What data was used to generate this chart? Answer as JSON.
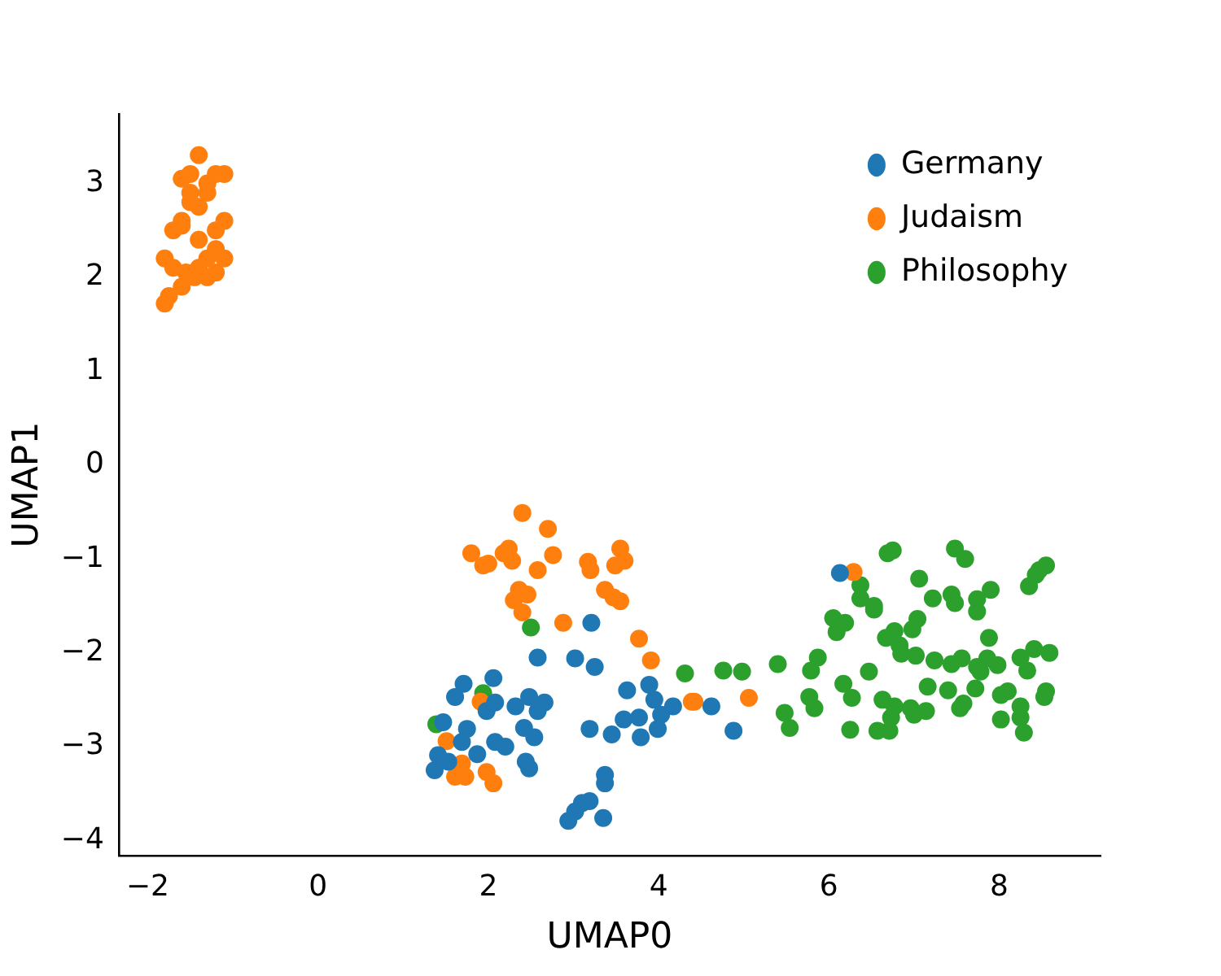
{
  "chart_data": {
    "type": "scatter",
    "xlabel": "UMAP0",
    "ylabel": "UMAP1",
    "xlim": [
      -2.34,
      9.19
    ],
    "ylim": [
      -4.16,
      3.74
    ],
    "xticks": [
      -2,
      0,
      2,
      4,
      6,
      8
    ],
    "yticks": [
      -4,
      -3,
      -2,
      -1,
      0,
      1,
      2,
      3
    ],
    "grid": false,
    "legend": "top right",
    "marker": "circle",
    "series": [
      {
        "name": "Germany",
        "color": "#1f77b4",
        "x": [
          3.21,
          2.58,
          3.02,
          3.25,
          2.06,
          1.71,
          1.61,
          1.98,
          2.08,
          2.32,
          2.48,
          2.66,
          2.58,
          1.47,
          1.75,
          2.42,
          2.54,
          2.08,
          2.2,
          1.69,
          1.87,
          1.41,
          1.53,
          1.37,
          2.44,
          2.48,
          3.19,
          3.45,
          3.63,
          3.89,
          3.95,
          4.17,
          4.03,
          3.59,
          3.77,
          3.79,
          3.99,
          3.37,
          3.37,
          3.19,
          3.1,
          3.02,
          2.94,
          3.35,
          6.13,
          4.88,
          4.62
        ],
        "values": [
          -1.68,
          -2.05,
          -2.06,
          -2.15,
          -2.27,
          -2.33,
          -2.47,
          -2.62,
          -2.53,
          -2.57,
          -2.47,
          -2.53,
          -2.62,
          -2.74,
          -2.81,
          -2.8,
          -2.9,
          -2.95,
          -3.0,
          -2.95,
          -3.08,
          -3.09,
          -3.16,
          -3.25,
          -3.16,
          -3.23,
          -2.81,
          -2.87,
          -2.4,
          -2.34,
          -2.5,
          -2.57,
          -2.66,
          -2.71,
          -2.69,
          -2.9,
          -2.81,
          -3.3,
          -3.39,
          -3.58,
          -3.6,
          -3.69,
          -3.79,
          -3.76,
          -1.15,
          -2.83,
          -2.57
        ]
      },
      {
        "name": "Judaism",
        "color": "#ff7f0e",
        "x": [
          -1.4,
          -1.6,
          -1.5,
          -1.2,
          -1.3,
          -1.1,
          -1.5,
          -1.5,
          -1.6,
          -1.4,
          -1.3,
          -1.1,
          -1.2,
          -1.3,
          -1.4,
          -1.2,
          -1.7,
          -1.6,
          -1.8,
          -1.7,
          -1.55,
          -1.4,
          -1.3,
          -1.2,
          -1.1,
          -1.6,
          -1.75,
          -1.8,
          -1.45,
          2.4,
          2.7,
          1.8,
          1.94,
          2.0,
          2.18,
          2.24,
          2.28,
          2.76,
          2.58,
          3.17,
          3.2,
          3.55,
          3.6,
          3.49,
          2.36,
          2.46,
          2.3,
          2.4,
          3.37,
          3.47,
          3.55,
          2.88,
          3.77,
          3.91,
          4.39,
          4.42,
          1.91,
          1.51,
          1.69,
          1.61,
          1.73,
          1.98,
          2.06,
          5.06,
          6.29
        ],
        "values": [
          3.3,
          3.05,
          3.1,
          3.1,
          3.0,
          3.1,
          2.9,
          2.8,
          2.6,
          2.75,
          2.9,
          2.6,
          2.3,
          2.2,
          2.4,
          2.5,
          2.5,
          2.55,
          2.2,
          2.1,
          2.05,
          2.1,
          2.0,
          2.05,
          2.2,
          1.9,
          1.8,
          1.72,
          2.0,
          -0.51,
          -0.68,
          -0.94,
          -1.07,
          -1.05,
          -0.94,
          -0.89,
          -1.02,
          -0.96,
          -1.12,
          -1.03,
          -1.12,
          -0.89,
          -1.02,
          -1.07,
          -1.33,
          -1.38,
          -1.44,
          -1.57,
          -1.33,
          -1.41,
          -1.45,
          -1.68,
          -1.85,
          -2.08,
          -2.52,
          -2.52,
          -2.52,
          -2.94,
          -3.18,
          -3.32,
          -3.32,
          -3.27,
          -3.39,
          -2.48,
          -1.14
        ]
      },
      {
        "name": "Philosophy",
        "color": "#2ca02c",
        "x": [
          2.5,
          1.94,
          1.39,
          4.31,
          4.76,
          4.98,
          5.4,
          5.79,
          5.87,
          5.77,
          5.83,
          5.48,
          5.54,
          6.17,
          6.27,
          6.47,
          6.25,
          6.63,
          6.77,
          6.57,
          6.71,
          6.73,
          6.96,
          7.0,
          7.14,
          7.16,
          7.4,
          7.54,
          7.58,
          7.72,
          8.02,
          8.1,
          8.02,
          8.25,
          8.25,
          8.29,
          8.55,
          8.53,
          6.05,
          6.09,
          6.19,
          6.37,
          6.37,
          6.53,
          6.53,
          6.69,
          6.75,
          7.06,
          7.22,
          7.44,
          7.48,
          7.74,
          7.74,
          7.9,
          7.48,
          7.6,
          8.35,
          8.43,
          8.55,
          8.47,
          7.04,
          6.98,
          6.67,
          6.77,
          6.83,
          6.85,
          7.02,
          7.24,
          7.44,
          7.56,
          7.74,
          7.86,
          7.98,
          7.88,
          8.25,
          8.41,
          8.59,
          8.33,
          7.78
        ],
        "values": [
          -1.73,
          -2.43,
          -2.76,
          -2.22,
          -2.19,
          -2.2,
          -2.12,
          -2.19,
          -2.05,
          -2.47,
          -2.59,
          -2.64,
          -2.8,
          -2.33,
          -2.48,
          -2.2,
          -2.82,
          -2.5,
          -2.57,
          -2.83,
          -2.83,
          -2.69,
          -2.59,
          -2.66,
          -2.62,
          -2.36,
          -2.4,
          -2.59,
          -2.54,
          -2.38,
          -2.45,
          -2.41,
          -2.71,
          -2.57,
          -2.69,
          -2.85,
          -2.41,
          -2.47,
          -1.63,
          -1.78,
          -1.68,
          -1.28,
          -1.42,
          -1.5,
          -1.54,
          -0.94,
          -0.91,
          -1.21,
          -1.42,
          -1.38,
          -1.47,
          -1.43,
          -1.56,
          -1.33,
          -0.89,
          -1.0,
          -1.29,
          -1.17,
          -1.07,
          -1.12,
          -1.64,
          -1.75,
          -1.84,
          -1.77,
          -1.92,
          -2.01,
          -2.03,
          -2.08,
          -2.12,
          -2.06,
          -2.15,
          -2.06,
          -2.13,
          -1.84,
          -2.05,
          -1.96,
          -2.0,
          -2.19,
          -2.2
        ]
      }
    ]
  }
}
